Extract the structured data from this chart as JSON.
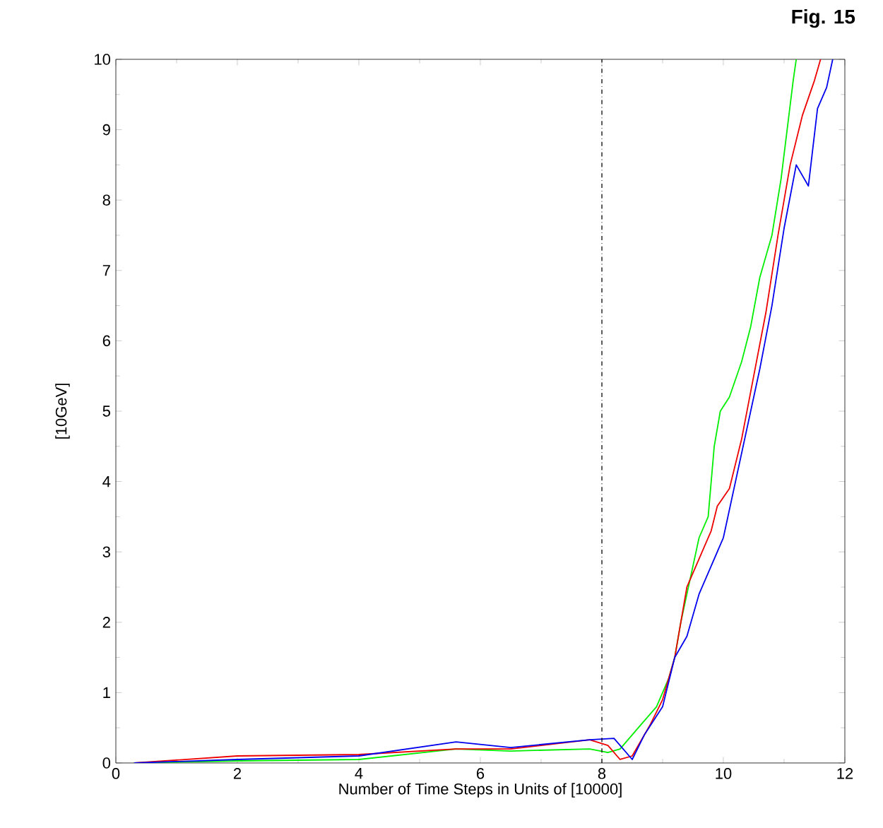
{
  "chart_data": {
    "type": "line",
    "title": "Fig. 15",
    "xlabel": "Number of Time Steps in Units of [10000]",
    "ylabel": "[10GeV]",
    "xlim": [
      0,
      12
    ],
    "ylim": [
      0,
      10
    ],
    "xticks": [
      0,
      2,
      4,
      6,
      8,
      10,
      12
    ],
    "yticks": [
      0,
      1,
      2,
      3,
      4,
      5,
      6,
      7,
      8,
      9,
      10
    ],
    "grid": false,
    "marker": "none",
    "line_style": "solid",
    "ref_lines": [
      {
        "axis": "x",
        "value": 8,
        "line_style": "dashdot",
        "color": "#000000"
      }
    ],
    "series": [
      {
        "color": "#00ee00",
        "x": [
          0.3,
          2,
          4,
          5.6,
          6.5,
          7.8,
          8.1,
          8.3,
          8.6,
          8.9,
          9.1,
          9.2,
          9.3,
          9.4,
          9.6,
          9.75,
          9.85,
          9.95,
          10.1,
          10.3,
          10.45,
          10.6,
          10.8,
          10.95,
          11.05,
          11.15,
          11.2
        ],
        "values": [
          0,
          0.03,
          0.05,
          0.2,
          0.17,
          0.2,
          0.15,
          0.2,
          0.5,
          0.8,
          1.2,
          1.5,
          2.0,
          2.4,
          3.2,
          3.5,
          4.5,
          5.0,
          5.2,
          5.7,
          6.2,
          6.9,
          7.5,
          8.3,
          9.0,
          9.7,
          10
        ]
      },
      {
        "color": "#ee0000",
        "x": [
          0.3,
          2,
          4,
          5.6,
          6.5,
          7.8,
          8.1,
          8.3,
          8.5,
          8.8,
          9.0,
          9.2,
          9.3,
          9.4,
          9.6,
          9.8,
          9.9,
          10.1,
          10.3,
          10.5,
          10.7,
          10.9,
          11.1,
          11.3,
          11.5,
          11.6
        ],
        "values": [
          0,
          0.1,
          0.12,
          0.2,
          0.2,
          0.33,
          0.25,
          0.05,
          0.1,
          0.55,
          0.9,
          1.5,
          2.0,
          2.5,
          2.9,
          3.3,
          3.65,
          3.9,
          4.6,
          5.5,
          6.4,
          7.5,
          8.5,
          9.2,
          9.7,
          10
        ]
      },
      {
        "color": "#0000ee",
        "x": [
          0.3,
          2,
          4,
          5.6,
          6.5,
          7.8,
          8.2,
          8.5,
          8.7,
          9.0,
          9.2,
          9.4,
          9.6,
          9.8,
          10.0,
          10.2,
          10.4,
          10.6,
          10.8,
          11.0,
          11.2,
          11.4,
          11.55,
          11.7,
          11.8
        ],
        "values": [
          0,
          0.05,
          0.1,
          0.3,
          0.22,
          0.33,
          0.35,
          0.05,
          0.4,
          0.8,
          1.5,
          1.8,
          2.4,
          2.8,
          3.2,
          4.0,
          4.8,
          5.6,
          6.5,
          7.6,
          8.5,
          8.2,
          9.3,
          9.6,
          10
        ]
      }
    ]
  }
}
